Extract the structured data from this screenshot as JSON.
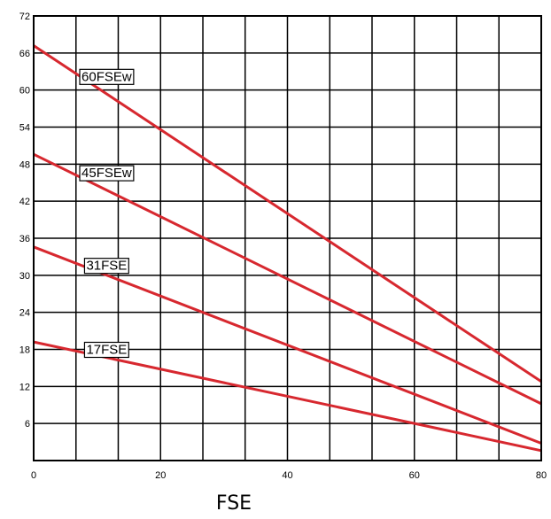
{
  "chart_data": {
    "type": "line",
    "title": "",
    "xlabel": "FSE",
    "ylabel": "",
    "xlim": [
      0,
      80
    ],
    "ylim": [
      0,
      72
    ],
    "x_ticks": [
      0,
      20,
      40,
      60,
      80
    ],
    "y_ticks": [
      6,
      12,
      18,
      24,
      30,
      36,
      42,
      48,
      54,
      60,
      66,
      72
    ],
    "x_grid": [
      0,
      6.67,
      13.33,
      20,
      26.67,
      33.33,
      40,
      46.67,
      53.33,
      60,
      66.67,
      73.33,
      80
    ],
    "y_grid": [
      0,
      6,
      12,
      18,
      24,
      30,
      36,
      42,
      48,
      54,
      60,
      66,
      72
    ],
    "grid": true,
    "series": [
      {
        "name": "60FSEw",
        "x": [
          0,
          80
        ],
        "y": [
          67.2,
          12.8
        ],
        "label_at": [
          11.5,
          62.2
        ]
      },
      {
        "name": "45FSEw",
        "x": [
          0,
          80
        ],
        "y": [
          49.6,
          9.2
        ],
        "label_at": [
          11.5,
          46.6
        ]
      },
      {
        "name": "31FSE",
        "x": [
          0,
          80
        ],
        "y": [
          34.6,
          2.8
        ],
        "label_at": [
          11.5,
          31.6
        ]
      },
      {
        "name": "17FSE",
        "x": [
          0,
          80
        ],
        "y": [
          19.2,
          1.6
        ],
        "label_at": [
          11.5,
          18.0
        ]
      }
    ],
    "colors": {
      "line": "#d7282f",
      "grid": "#000000"
    }
  }
}
